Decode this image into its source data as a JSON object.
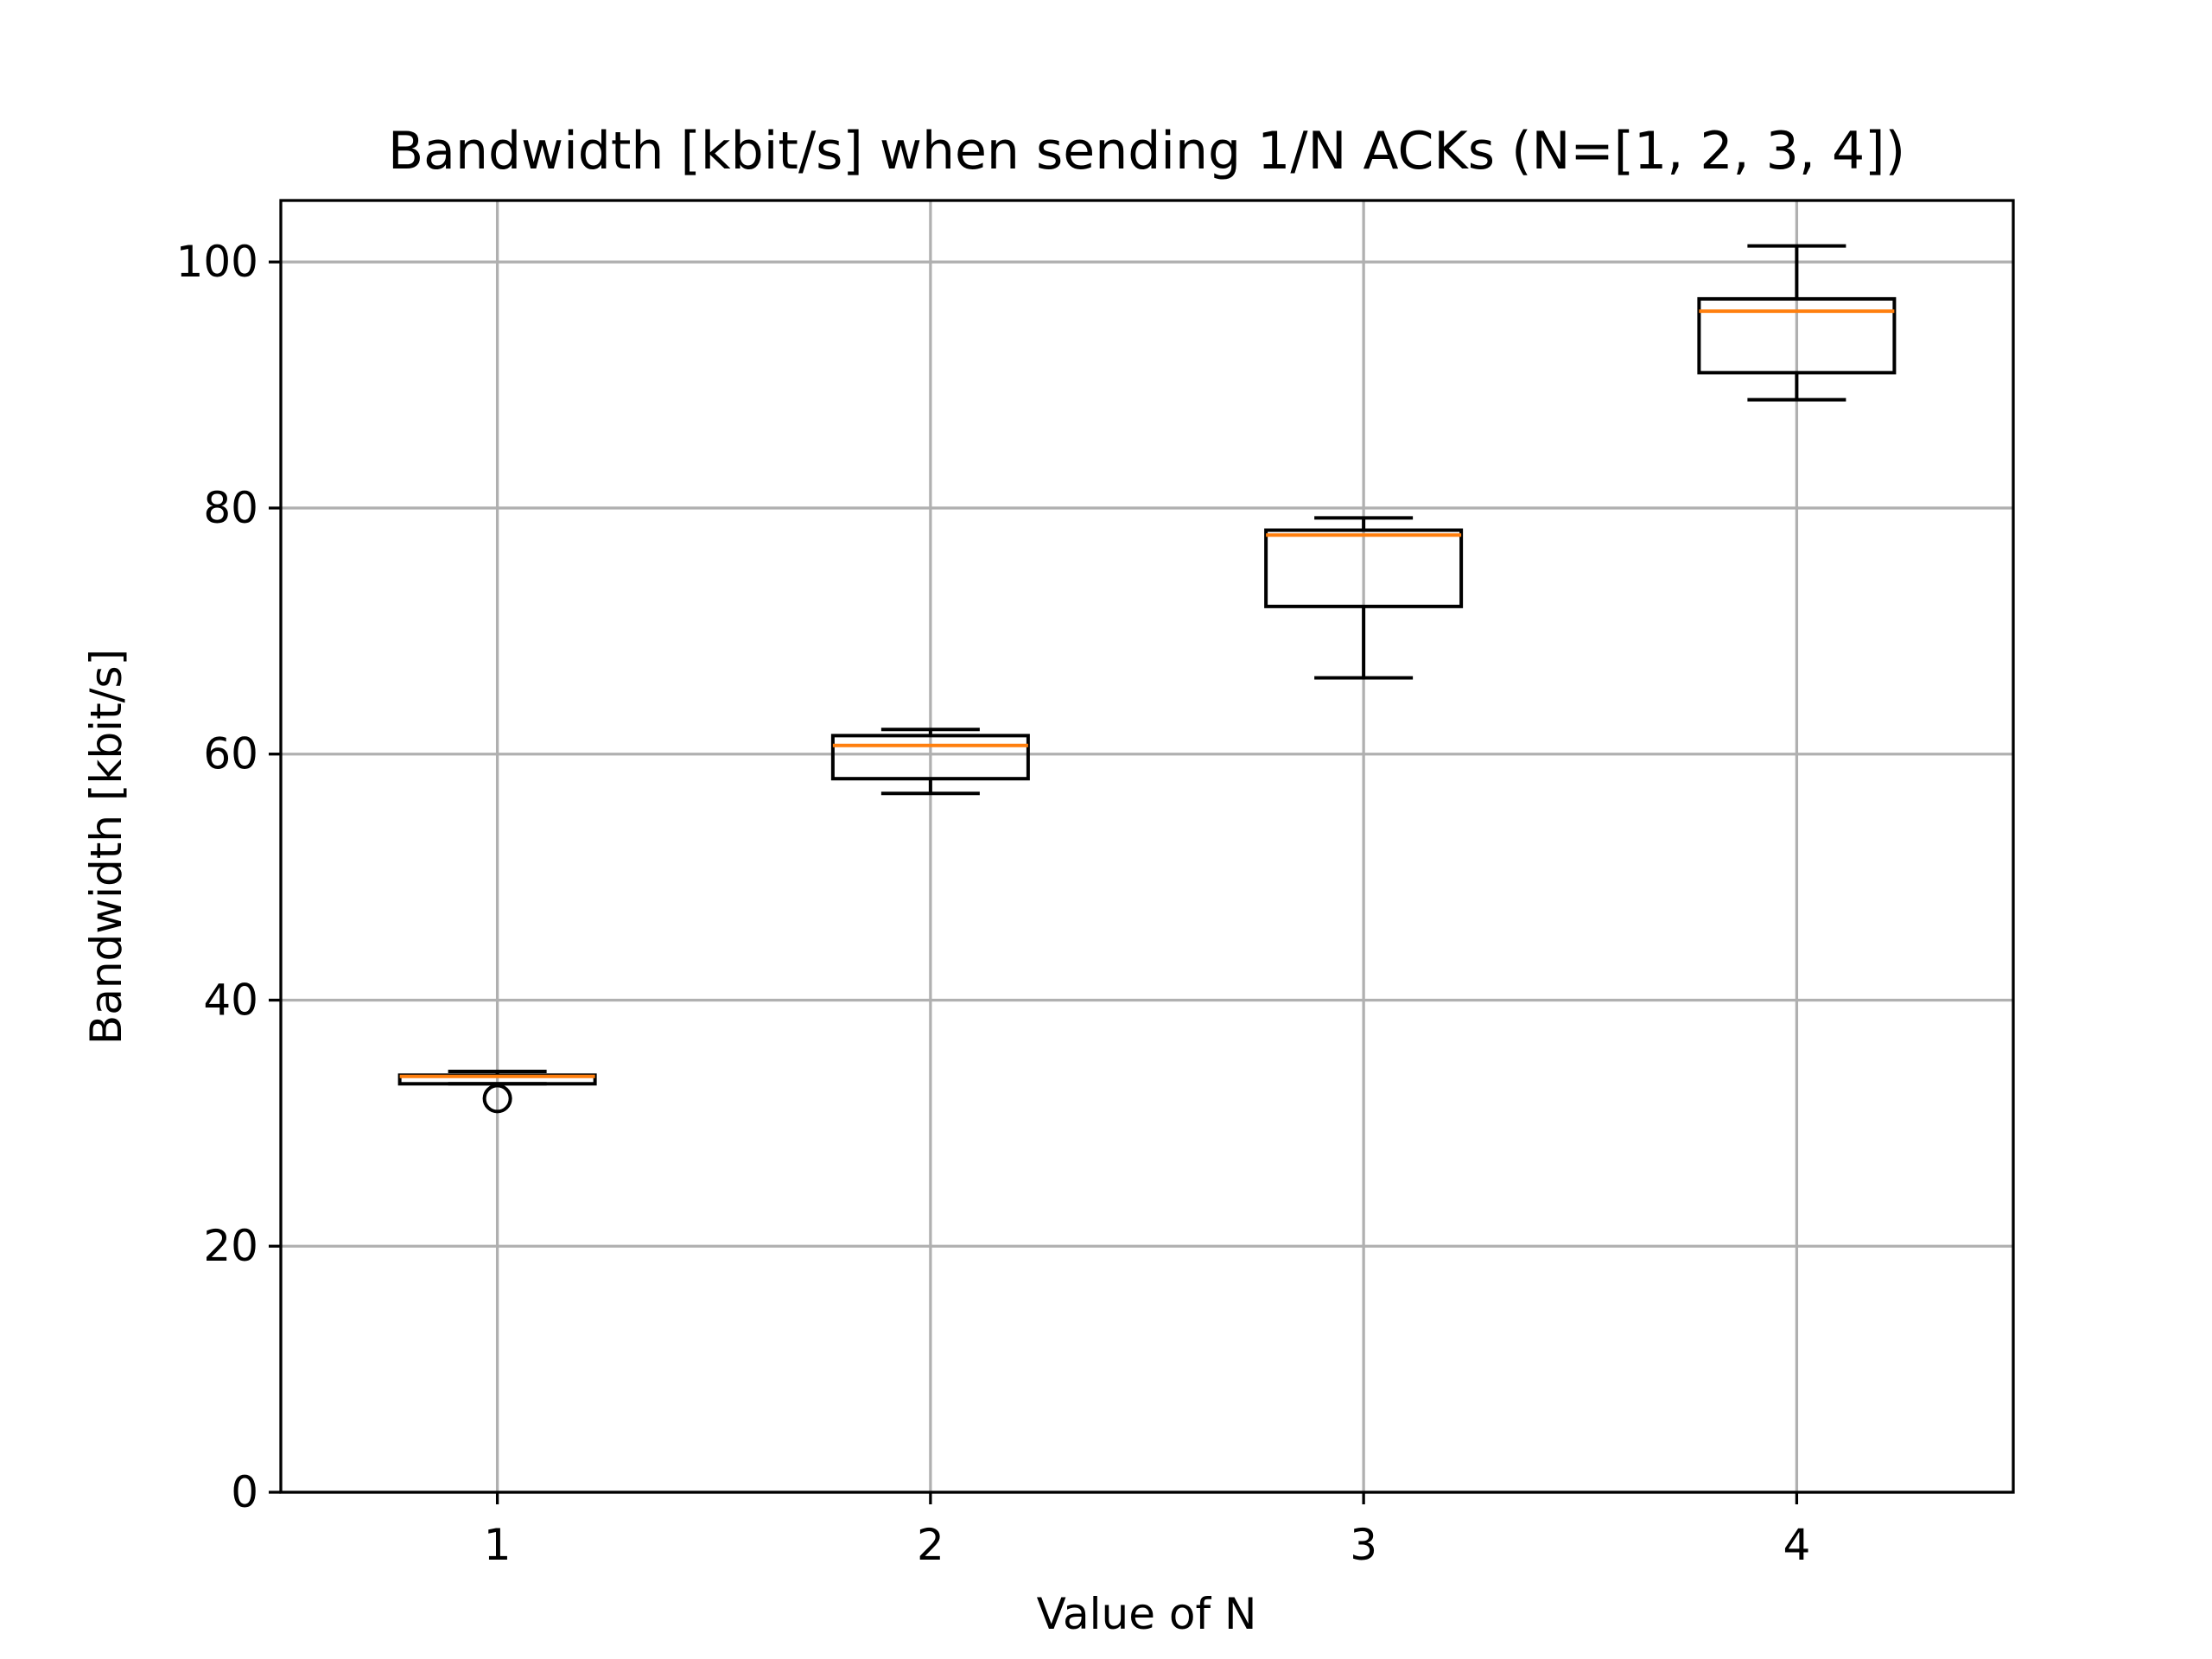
{
  "chart_data": {
    "type": "box",
    "title": "Bandwidth [kbit/s] when sending 1/N ACKs (N=[1, 2, 3, 4])",
    "xlabel": "Value of N",
    "ylabel": "Bandwidth [kbit/s]",
    "categories": [
      "1",
      "2",
      "3",
      "4"
    ],
    "ylim": [
      0,
      105
    ],
    "yticks": [
      0,
      20,
      40,
      60,
      80,
      100
    ],
    "grid": true,
    "colors": {
      "box": "#000000",
      "median": "#ff7f0e",
      "grid": "#b0b0b0"
    },
    "boxes": [
      {
        "category": "1",
        "whisker_low": 33.2,
        "q1": 33.2,
        "median": 33.8,
        "q3": 33.9,
        "whisker_high": 34.2,
        "fliers": [
          32.0
        ]
      },
      {
        "category": "2",
        "whisker_low": 56.8,
        "q1": 58.0,
        "median": 60.7,
        "q3": 61.5,
        "whisker_high": 62.0,
        "fliers": []
      },
      {
        "category": "3",
        "whisker_low": 66.2,
        "q1": 72.0,
        "median": 77.8,
        "q3": 78.2,
        "whisker_high": 79.2,
        "fliers": []
      },
      {
        "category": "4",
        "whisker_low": 88.8,
        "q1": 91.0,
        "median": 96.0,
        "q3": 97.0,
        "whisker_high": 101.3,
        "fliers": []
      }
    ]
  }
}
